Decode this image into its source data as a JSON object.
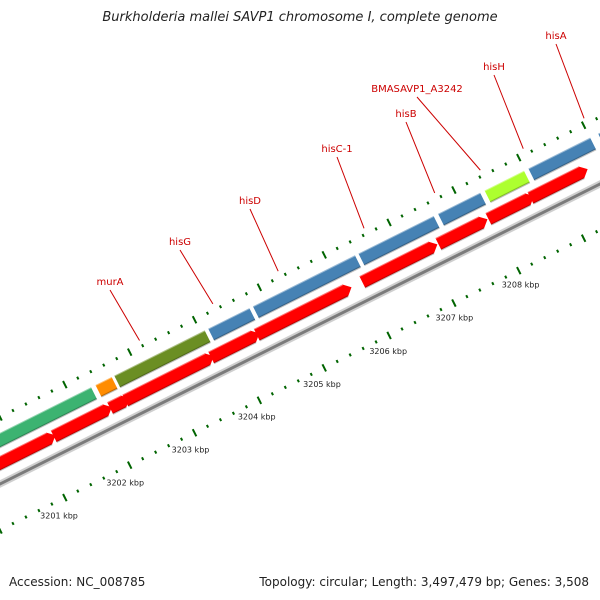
{
  "title": "Burkholderia mallei SAVP1 chromosome I, complete genome",
  "footer": {
    "accession": "Accession: NC_008785",
    "summary": "Topology: circular; Length: 3,497,479 bp; Genes: 3,508"
  },
  "colors": {
    "backbone": "#7b7b7b",
    "forward_cds": "#4682b4",
    "reverse_cds": "#ff0000",
    "label": "#cc0000",
    "tick": "#006400"
  },
  "kbp_labels": [
    "3201 kbp",
    "3202 kbp",
    "3203 kbp",
    "3204 kbp",
    "3205 kbp",
    "3206 kbp",
    "3207 kbp",
    "3208 kbp"
  ],
  "forward_features": [
    {
      "color": "#3cb371"
    },
    {
      "color": "#ff8c00"
    },
    {
      "color": "#6b8e23"
    },
    {
      "color": "#4682b4"
    },
    {
      "color": "#4682b4"
    },
    {
      "color": "#4682b4"
    },
    {
      "color": "#4682b4"
    },
    {
      "color": "#adff2f"
    },
    {
      "color": "#4682b4"
    },
    {
      "color": "#4682b4"
    }
  ],
  "gene_labels": [
    {
      "name": "murA"
    },
    {
      "name": "hisG"
    },
    {
      "name": "hisD"
    },
    {
      "name": "hisC-1"
    },
    {
      "name": "hisB"
    },
    {
      "name": "BMASAVP1_A3242"
    },
    {
      "name": "hisH"
    },
    {
      "name": "hisA"
    }
  ]
}
